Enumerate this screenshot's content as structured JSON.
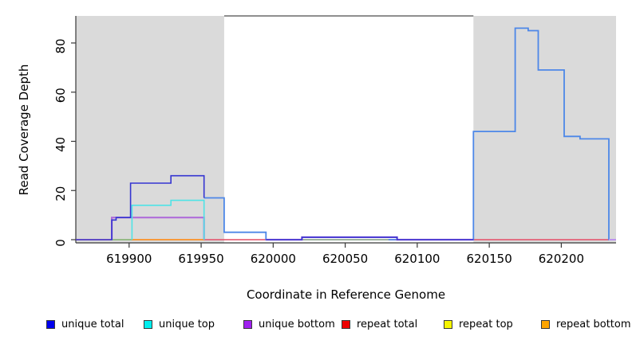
{
  "chart_data": {
    "type": "line",
    "subtype": "step-coverage-plot",
    "title": "",
    "xlabel": "Coordinate in Reference Genome",
    "ylabel": "Read Coverage Depth",
    "xlim": [
      619863,
      620238
    ],
    "ylim": [
      0,
      91
    ],
    "x_ticks": [
      619900,
      619950,
      620000,
      620050,
      620100,
      620150,
      620200
    ],
    "y_ticks": [
      0,
      20,
      40,
      60,
      80
    ],
    "grid": false,
    "background_shading": [
      {
        "name": "left-gray-region",
        "x0": 619863,
        "x1": 619966,
        "color": "#DADADA"
      },
      {
        "name": "right-gray-region",
        "x0": 620139,
        "x1": 620238,
        "color": "#DADADA"
      }
    ],
    "series": [
      {
        "name": "repeat total baseline",
        "color": "#E44D66",
        "width": 1.4,
        "points": [
          [
            619863,
            0
          ],
          [
            620238,
            0
          ]
        ]
      },
      {
        "name": "total coverage",
        "color": "#4D87E8",
        "width": 1.8,
        "points": [
          [
            619952,
            17
          ],
          [
            619966,
            17
          ],
          [
            619966,
            3
          ],
          [
            619995,
            3
          ],
          [
            619995,
            0
          ],
          [
            620139,
            0
          ],
          [
            620139,
            44
          ],
          [
            620168,
            44
          ],
          [
            620168,
            86
          ],
          [
            620177,
            86
          ],
          [
            620177,
            85
          ],
          [
            620184,
            85
          ],
          [
            620184,
            69
          ],
          [
            620202,
            69
          ],
          [
            620202,
            42
          ],
          [
            620213,
            42
          ],
          [
            620213,
            41
          ],
          [
            620233,
            41
          ],
          [
            620233,
            0
          ],
          [
            620238,
            0
          ]
        ]
      },
      {
        "name": "overlap green left",
        "color": "#7FC87F",
        "width": 1.4,
        "points": [
          [
            619888,
            0
          ],
          [
            619902,
            0
          ]
        ]
      },
      {
        "name": "overlap green middle",
        "color": "#A9BE8A",
        "width": 1.4,
        "points": [
          [
            620020,
            0
          ],
          [
            620080,
            0
          ]
        ]
      },
      {
        "name": "repeat bottom",
        "color": "#FF9C1B",
        "width": 1.6,
        "points": [
          [
            619902,
            0
          ],
          [
            619952,
            0
          ]
        ]
      },
      {
        "name": "unique bottom",
        "color": "#AF6CD9",
        "width": 2.2,
        "points": [
          [
            619888,
            0
          ],
          [
            619888,
            9
          ],
          [
            619952,
            9
          ],
          [
            619952,
            0
          ]
        ]
      },
      {
        "name": "unique bottom middle",
        "color": "#AF6CD9",
        "width": 2.2,
        "points": [
          [
            619995,
            0
          ],
          [
            620020,
            0
          ],
          [
            620020,
            1
          ],
          [
            620086,
            1
          ],
          [
            620086,
            0
          ],
          [
            620139,
            0
          ]
        ]
      },
      {
        "name": "unique top",
        "color": "#4FE3E6",
        "width": 1.6,
        "points": [
          [
            619902,
            0
          ],
          [
            619902,
            14
          ],
          [
            619929,
            14
          ],
          [
            619929,
            16
          ],
          [
            619952,
            16
          ],
          [
            619952,
            0
          ]
        ]
      },
      {
        "name": "unique total",
        "color": "#3535D1",
        "width": 1.6,
        "points": [
          [
            619863,
            0
          ],
          [
            619888,
            0
          ],
          [
            619888,
            8
          ],
          [
            619891,
            8
          ],
          [
            619891,
            9
          ],
          [
            619901,
            9
          ],
          [
            619901,
            23
          ],
          [
            619929,
            23
          ],
          [
            619929,
            26
          ],
          [
            619952,
            26
          ],
          [
            619952,
            17
          ]
        ]
      },
      {
        "name": "unique total middle",
        "color": "#3535D1",
        "width": 1.6,
        "points": [
          [
            619995,
            0
          ],
          [
            620020,
            0
          ],
          [
            620020,
            1
          ],
          [
            620086,
            1
          ],
          [
            620086,
            0
          ],
          [
            620139,
            0
          ]
        ]
      },
      {
        "name": "unique bottom tail",
        "color": "#BD93EE",
        "width": 2.0,
        "points": [
          [
            620233,
            0
          ],
          [
            620238,
            0
          ]
        ]
      }
    ],
    "legend": [
      {
        "label": "unique total",
        "color": "#0000EE"
      },
      {
        "label": "unique top",
        "color": "#00EEEE"
      },
      {
        "label": "unique bottom",
        "color": "#A020F0"
      },
      {
        "label": "repeat total",
        "color": "#EE0000"
      },
      {
        "label": "repeat top",
        "color": "#F5F500"
      },
      {
        "label": "repeat bottom",
        "color": "#FFA500"
      }
    ],
    "legend_position": "bottom"
  }
}
